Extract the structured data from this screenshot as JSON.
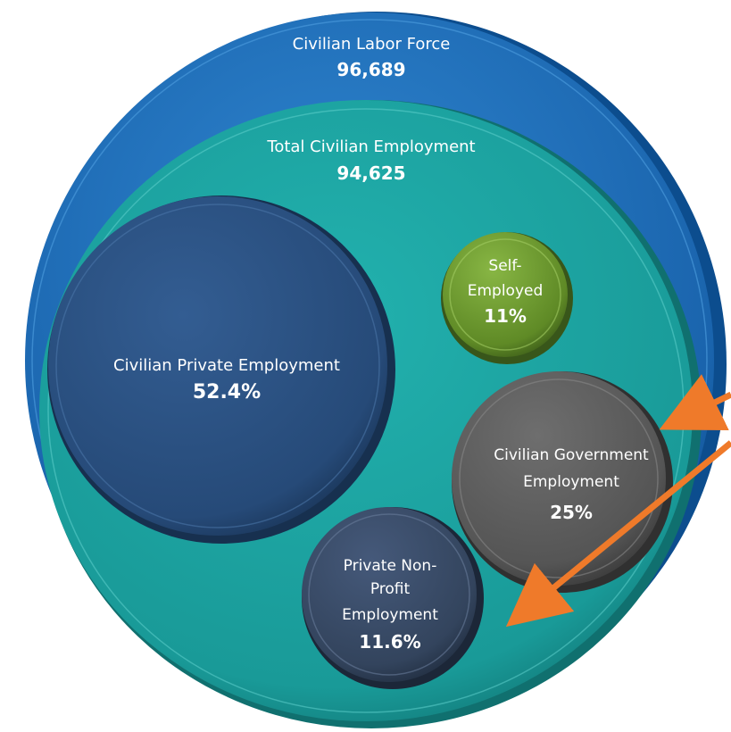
{
  "labor_force": {
    "label": "Civilian Labor Force",
    "value": "96,689",
    "color": "#1f6fb8"
  },
  "total_employment": {
    "label": "Total Civilian Employment",
    "value": "94,625",
    "color": "#1aa3a3"
  },
  "private_employment": {
    "label": "Civilian Private Employment",
    "value": "52.4%",
    "color": "#2b4f80"
  },
  "self_employed": {
    "label_line1": "Self-",
    "label_line2": "Employed",
    "value": "11%",
    "color": "#6f9a2e"
  },
  "government_employment": {
    "label_line1": "Civilian Government",
    "label_line2": "Employment",
    "value": "25%",
    "color": "#5a5a5a"
  },
  "nonprofit_employment": {
    "label_line1": "Private Non-",
    "label_line2": "Profit",
    "label_line3": "Employment",
    "value": "11.6%",
    "color": "#34465e"
  },
  "arrow_color": "#ef7a2a"
}
